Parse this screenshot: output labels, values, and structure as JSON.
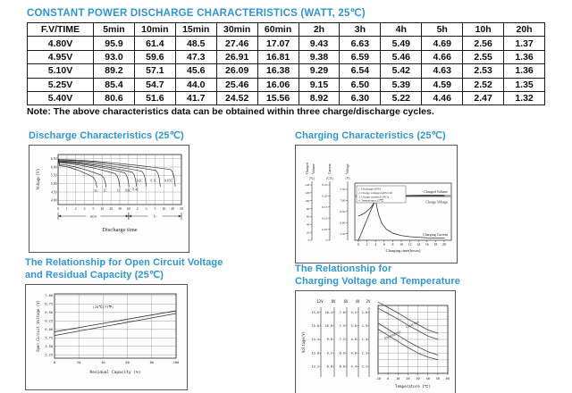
{
  "colors": {
    "accent_blue": "#2e96d2",
    "text": "#111111",
    "table_border": "#1a1a1a",
    "chart_line": "#333333",
    "thick_gray": "#999999"
  },
  "header": {
    "title": "CONSTANT POWER DISCHARGE CHARACTERISTICS (WATT, 25℃)"
  },
  "table": {
    "columns": [
      "F.V/TIME",
      "5min",
      "10min",
      "15min",
      "30min",
      "60min",
      "2h",
      "3h",
      "4h",
      "5h",
      "10h",
      "20h"
    ],
    "rows": [
      {
        "label": "4.80V",
        "values": [
          "95.9",
          "61.4",
          "48.5",
          "27.46",
          "17.07",
          "9.43",
          "6.63",
          "5.49",
          "4.69",
          "2.56",
          "1.37"
        ]
      },
      {
        "label": "4.95V",
        "values": [
          "93.0",
          "59.6",
          "47.3",
          "26.91",
          "16.81",
          "9.38",
          "6.59",
          "5.46",
          "4.66",
          "2.55",
          "1.36"
        ]
      },
      {
        "label": "5.10V",
        "values": [
          "89.2",
          "57.1",
          "45.6",
          "26.09",
          "16.38",
          "9.29",
          "6.54",
          "5.42",
          "4.63",
          "2.53",
          "1.36"
        ]
      },
      {
        "label": "5.25V",
        "values": [
          "85.4",
          "54.7",
          "44.0",
          "25.46",
          "16.06",
          "9.15",
          "6.50",
          "5.39",
          "4.59",
          "2.52",
          "1.35"
        ]
      },
      {
        "label": "5.40V",
        "values": [
          "80.6",
          "51.6",
          "41.7",
          "24.52",
          "15.56",
          "8.92",
          "6.30",
          "5.22",
          "4.46",
          "2.47",
          "1.32"
        ]
      }
    ]
  },
  "note": "Note: The above characteristics data can be obtained within three charge/discharge cycles.",
  "chart_data": [
    {
      "id": "discharge",
      "type": "line",
      "title": "Discharge Characteristics (25℃)",
      "ylabel": "Voltage (V)",
      "xlabel": "Discharge time",
      "ylim": [
        3.75,
        6.75
      ],
      "y_ticks": [
        "6.50",
        "6.00",
        "5.50",
        "5.00",
        "4.50",
        "4.00"
      ],
      "x_ticks": [
        "0",
        "1",
        "2",
        "3",
        "5",
        "10",
        "20",
        "30",
        "60",
        "2",
        "3",
        "5",
        "10",
        "20",
        "30"
      ],
      "x_groups": [
        {
          "label": "min",
          "span": [
            0,
            8
          ]
        },
        {
          "label": "h",
          "span": [
            8,
            14
          ]
        }
      ],
      "curves": [
        {
          "label": "3C",
          "v_start": 6.08,
          "v_knee": 5.42,
          "knee": 4.4,
          "v_end": 4.78
        },
        {
          "label": "2C",
          "v_start": 6.15,
          "v_knee": 5.5,
          "knee": 5.45,
          "v_end": 4.8
        },
        {
          "label": "1C",
          "v_start": 6.25,
          "v_knee": 5.6,
          "knee": 7.0,
          "v_end": 4.8
        },
        {
          "label": "0.6C",
          "v_start": 6.3,
          "v_knee": 5.66,
          "knee": 8.05,
          "v_end": 4.82
        },
        {
          "label": "0.4C",
          "v_start": 6.33,
          "v_knee": 5.7,
          "knee": 8.9,
          "v_end": 4.85
        },
        {
          "label": "0.2C",
          "v_start": 6.37,
          "v_knee": 5.75,
          "knee": 10.0,
          "v_end": 4.85
        },
        {
          "label": "0.1C",
          "v_start": 6.42,
          "v_knee": 5.8,
          "knee": 11.6,
          "v_end": 4.85
        },
        {
          "label": "0.05C",
          "v_start": 6.45,
          "v_knee": 5.85,
          "knee": 13.3,
          "v_end": 4.85
        }
      ]
    },
    {
      "id": "charging",
      "type": "line",
      "title": "Charging Characteristics (25℃)",
      "xlabel": "Charging time(hours)",
      "x_ticks": [
        0,
        2,
        4,
        6,
        8,
        10,
        12,
        14,
        16,
        18,
        20
      ],
      "axes": [
        {
          "caption": "Charged Volume",
          "unit": "(%)",
          "ticks": [
            "140",
            "120",
            "100",
            "80",
            "60",
            "40",
            "20",
            "0"
          ]
        },
        {
          "caption": "Current",
          "unit": "(CA)",
          "ticks": [
            "0.25",
            "0.20",
            "0.15",
            "0.10",
            "0.05",
            "0"
          ]
        },
        {
          "caption": "Voltage",
          "unit": "(V)",
          "ticks": [
            "7.50",
            "7.00",
            "6.50",
            "6.00",
            "5.50"
          ]
        }
      ],
      "legend": [
        "1. Discharge:100%",
        "2. Charge voltage:2.40V/cell",
        "3. Charge current:0.20CA",
        "4. Temperature:25℃"
      ],
      "charge_voltage_limit": 7.2,
      "series": [
        {
          "name": "Charged Volume",
          "axis": "%",
          "x": [
            0,
            1,
            2,
            3,
            3.8,
            4.5,
            5,
            6,
            7,
            8,
            10,
            12,
            16,
            20
          ],
          "y": [
            0,
            26,
            52,
            78,
            97,
            101,
            104,
            107,
            109,
            110,
            112,
            113,
            114,
            114
          ]
        },
        {
          "name": "Charge Voltage",
          "axis": "V",
          "x": [
            0,
            0.5,
            1,
            1.5,
            2,
            2.5,
            3,
            3.5,
            4,
            4.5,
            5,
            6,
            8,
            12,
            16,
            20
          ],
          "y": [
            6.3,
            6.33,
            6.38,
            6.44,
            6.52,
            6.6,
            6.7,
            6.85,
            7.05,
            7.14,
            7.18,
            7.2,
            7.2,
            7.2,
            7.2,
            7.2
          ]
        },
        {
          "name": "Charging Current",
          "axis": "CA",
          "x": [
            0,
            3.8,
            4.0,
            4.3,
            4.8,
            5.5,
            6.5,
            8,
            10,
            12,
            16,
            20
          ],
          "y": [
            0.2,
            0.2,
            0.185,
            0.15,
            0.11,
            0.075,
            0.05,
            0.032,
            0.021,
            0.016,
            0.011,
            0.01
          ]
        }
      ]
    },
    {
      "id": "ocv_capacity",
      "type": "line",
      "title_lines": [
        "The Relationship for Open Circuit Voltage",
        "and Residual Capacity (25℃)"
      ],
      "ylabel": "Open Circuit Voltage (V)",
      "xlabel": "Residual Capacity (%)",
      "annotation": "(25℃/77℉)",
      "y_ticks": [
        "7.00",
        "6.75",
        "6.50",
        "6.25",
        "6.00",
        "5.75",
        "5.50",
        "5.25"
      ],
      "x_ticks": [
        0,
        20,
        40,
        60,
        80,
        100
      ],
      "series": [
        {
          "name": "upper",
          "x": [
            0,
            100
          ],
          "y": [
            5.93,
            6.55
          ]
        },
        {
          "name": "lower",
          "x": [
            0,
            100
          ],
          "y": [
            5.82,
            6.47
          ]
        }
      ]
    },
    {
      "id": "charge_voltage_temp",
      "type": "line",
      "title_lines": [
        "The Relationship for",
        "Charging Voltage and Temperature"
      ],
      "ylabel": "Voltage(V)",
      "xlabel": "Temperature (℃)",
      "x_ticks": [
        -10,
        0,
        10,
        20,
        30,
        40,
        50,
        60
      ],
      "voltage_scales": [
        {
          "label": "12V",
          "ticks": [
            "15.6",
            "15.0",
            "14.4",
            "13.8",
            "13.2"
          ]
        },
        {
          "label": "8V",
          "ticks": [
            "10.4",
            "10.0",
            "9.6",
            "9.2",
            "8.8"
          ]
        },
        {
          "label": "6V",
          "ticks": [
            "7.8",
            "7.5",
            "7.2",
            "6.9",
            "6.6"
          ]
        },
        {
          "label": "4V",
          "ticks": [
            "5.2",
            "5.0",
            "4.8",
            "4.6",
            "4.4"
          ]
        },
        {
          "label": "2V",
          "ticks": [
            "2.6",
            "2.5",
            "2.4",
            "2.3",
            "2.2"
          ]
        }
      ],
      "bands": [
        {
          "name": "Cycle Use",
          "upper": [
            [
              -10,
              2.675
            ],
            [
              0,
              2.635
            ],
            [
              10,
              2.595
            ],
            [
              20,
              2.55
            ],
            [
              30,
              2.51
            ],
            [
              40,
              2.47
            ],
            [
              50,
              2.445
            ]
          ],
          "lower": [
            [
              -10,
              2.63
            ],
            [
              0,
              2.59
            ],
            [
              10,
              2.55
            ],
            [
              20,
              2.505
            ],
            [
              30,
              2.465
            ],
            [
              40,
              2.425
            ],
            [
              50,
              2.4
            ]
          ]
        },
        {
          "name": "Floating Use",
          "upper": [
            [
              -10,
              2.52
            ],
            [
              0,
              2.475
            ],
            [
              10,
              2.43
            ],
            [
              20,
              2.385
            ],
            [
              30,
              2.345
            ],
            [
              40,
              2.31
            ],
            [
              50,
              2.285
            ]
          ],
          "lower": [
            [
              -10,
              2.475
            ],
            [
              0,
              2.43
            ],
            [
              10,
              2.385
            ],
            [
              20,
              2.34
            ],
            [
              30,
              2.3
            ],
            [
              40,
              2.27
            ],
            [
              50,
              2.25
            ]
          ]
        }
      ]
    }
  ]
}
